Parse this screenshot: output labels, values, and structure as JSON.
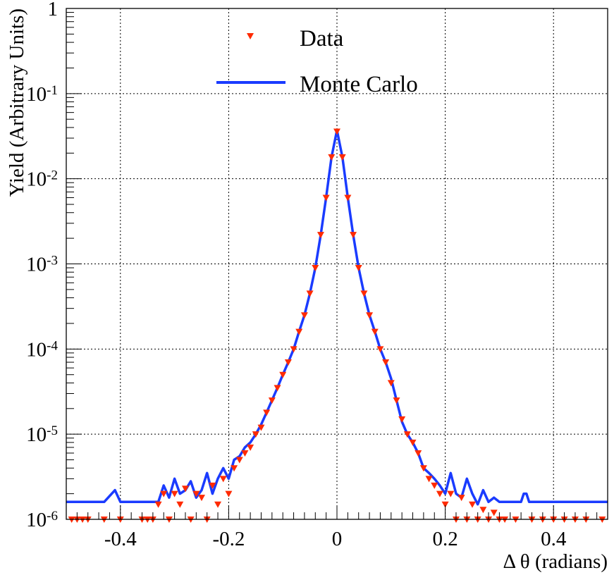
{
  "chart_data": {
    "type": "scatter",
    "title": "",
    "xlabel": "Δ θ (radians)",
    "ylabel": "Yield (Arbitrary Units)",
    "xlim": [
      -0.5,
      0.5
    ],
    "ylim": [
      1e-06,
      1
    ],
    "yscale": "log",
    "grid": true,
    "legend_position": "top-center",
    "x_ticks": [
      "-0.4",
      "-0.2",
      "0",
      "0.2",
      "0.4"
    ],
    "y_ticks": [
      {
        "base": "10",
        "exp": "-6"
      },
      {
        "base": "10",
        "exp": "-5"
      },
      {
        "base": "10",
        "exp": "-4"
      },
      {
        "base": "10",
        "exp": "-3"
      },
      {
        "base": "10",
        "exp": "-2"
      },
      {
        "base": "10",
        "exp": "-1"
      },
      {
        "base": "1",
        "exp": ""
      }
    ],
    "series": [
      {
        "name": "Data",
        "kind": "markers",
        "marker": "triangle-down",
        "color": "#ff2a00",
        "x": [
          -0.49,
          -0.48,
          -0.47,
          -0.46,
          -0.43,
          -0.4,
          -0.36,
          -0.35,
          -0.34,
          -0.33,
          -0.32,
          -0.31,
          -0.3,
          -0.29,
          -0.28,
          -0.27,
          -0.26,
          -0.25,
          -0.24,
          -0.23,
          -0.22,
          -0.21,
          -0.2,
          -0.19,
          -0.18,
          -0.17,
          -0.16,
          -0.15,
          -0.14,
          -0.13,
          -0.12,
          -0.11,
          -0.1,
          -0.09,
          -0.08,
          -0.07,
          -0.06,
          -0.05,
          -0.04,
          -0.03,
          -0.02,
          -0.01,
          0.0,
          0.01,
          0.02,
          0.03,
          0.04,
          0.05,
          0.06,
          0.07,
          0.08,
          0.09,
          0.1,
          0.11,
          0.12,
          0.13,
          0.14,
          0.15,
          0.16,
          0.17,
          0.18,
          0.19,
          0.2,
          0.21,
          0.22,
          0.23,
          0.24,
          0.25,
          0.26,
          0.27,
          0.28,
          0.29,
          0.3,
          0.31,
          0.33,
          0.36,
          0.38,
          0.4,
          0.42,
          0.44,
          0.46,
          0.49
        ],
        "y": [
          1e-06,
          1e-06,
          1e-06,
          1e-06,
          1e-06,
          1e-06,
          1e-06,
          1e-06,
          1e-06,
          1.5e-06,
          2e-06,
          1e-06,
          2e-06,
          1.5e-06,
          2.3e-06,
          1e-06,
          2e-06,
          1.8e-06,
          1e-06,
          2.5e-06,
          1.5e-06,
          3e-06,
          2e-06,
          4e-06,
          5e-06,
          6e-06,
          7e-06,
          1e-05,
          1.2e-05,
          1.8e-05,
          2.5e-05,
          3.5e-05,
          5e-05,
          7e-05,
          0.0001,
          0.00016,
          0.00025,
          0.00045,
          0.0009,
          0.0022,
          0.006,
          0.018,
          0.036,
          0.018,
          0.006,
          0.0022,
          0.0009,
          0.00045,
          0.00025,
          0.00016,
          0.0001,
          7e-05,
          4e-05,
          2.5e-05,
          1.5e-05,
          1e-05,
          8e-06,
          6e-06,
          4e-06,
          3e-06,
          2.5e-06,
          2e-06,
          1.5e-06,
          2e-06,
          1e-06,
          1.8e-06,
          1e-06,
          1.5e-06,
          1e-06,
          1.3e-06,
          1e-06,
          1.2e-06,
          1e-06,
          1e-06,
          1e-06,
          1e-06,
          1e-06,
          1e-06,
          1e-06,
          1e-06,
          1e-06,
          1e-06
        ]
      },
      {
        "name": "Monte Carlo",
        "kind": "line",
        "color": "#1a3bff",
        "x": [
          -0.5,
          -0.43,
          -0.41,
          -0.4,
          -0.39,
          -0.33,
          -0.32,
          -0.31,
          -0.3,
          -0.29,
          -0.28,
          -0.27,
          -0.26,
          -0.25,
          -0.24,
          -0.23,
          -0.22,
          -0.21,
          -0.2,
          -0.19,
          -0.18,
          -0.17,
          -0.16,
          -0.15,
          -0.14,
          -0.13,
          -0.12,
          -0.11,
          -0.1,
          -0.09,
          -0.08,
          -0.07,
          -0.06,
          -0.05,
          -0.04,
          -0.03,
          -0.02,
          -0.01,
          0.0,
          0.01,
          0.02,
          0.03,
          0.04,
          0.05,
          0.06,
          0.07,
          0.08,
          0.09,
          0.1,
          0.11,
          0.12,
          0.13,
          0.14,
          0.15,
          0.16,
          0.17,
          0.18,
          0.19,
          0.2,
          0.21,
          0.22,
          0.23,
          0.24,
          0.25,
          0.26,
          0.27,
          0.28,
          0.29,
          0.3,
          0.31,
          0.34,
          0.345,
          0.35,
          0.355,
          0.36,
          0.5
        ],
        "y": [
          1.6e-06,
          1.6e-06,
          2.2e-06,
          1.6e-06,
          1.6e-06,
          1.6e-06,
          2.5e-06,
          1.8e-06,
          3e-06,
          2e-06,
          2.2e-06,
          2.8e-06,
          1.8e-06,
          2.2e-06,
          3.5e-06,
          2e-06,
          3e-06,
          4e-06,
          3e-06,
          5e-06,
          5.5e-06,
          7e-06,
          8e-06,
          1e-05,
          1.3e-05,
          1.8e-05,
          2.5e-05,
          3.5e-05,
          5e-05,
          7e-05,
          0.0001,
          0.00016,
          0.00025,
          0.00045,
          0.0009,
          0.0022,
          0.006,
          0.018,
          0.037,
          0.018,
          0.006,
          0.0022,
          0.0009,
          0.00045,
          0.00025,
          0.00016,
          0.0001,
          7e-05,
          4.5e-05,
          2.5e-05,
          1.4e-05,
          1e-05,
          8e-06,
          6e-06,
          4e-06,
          3.5e-06,
          3e-06,
          2.5e-06,
          2e-06,
          3.5e-06,
          2e-06,
          1.8e-06,
          3e-06,
          2e-06,
          1.5e-06,
          2.2e-06,
          1.6e-06,
          1.8e-06,
          1.6e-06,
          1.6e-06,
          1.6e-06,
          2e-06,
          2e-06,
          1.6e-06,
          1.6e-06,
          1.6e-06
        ]
      }
    ]
  }
}
